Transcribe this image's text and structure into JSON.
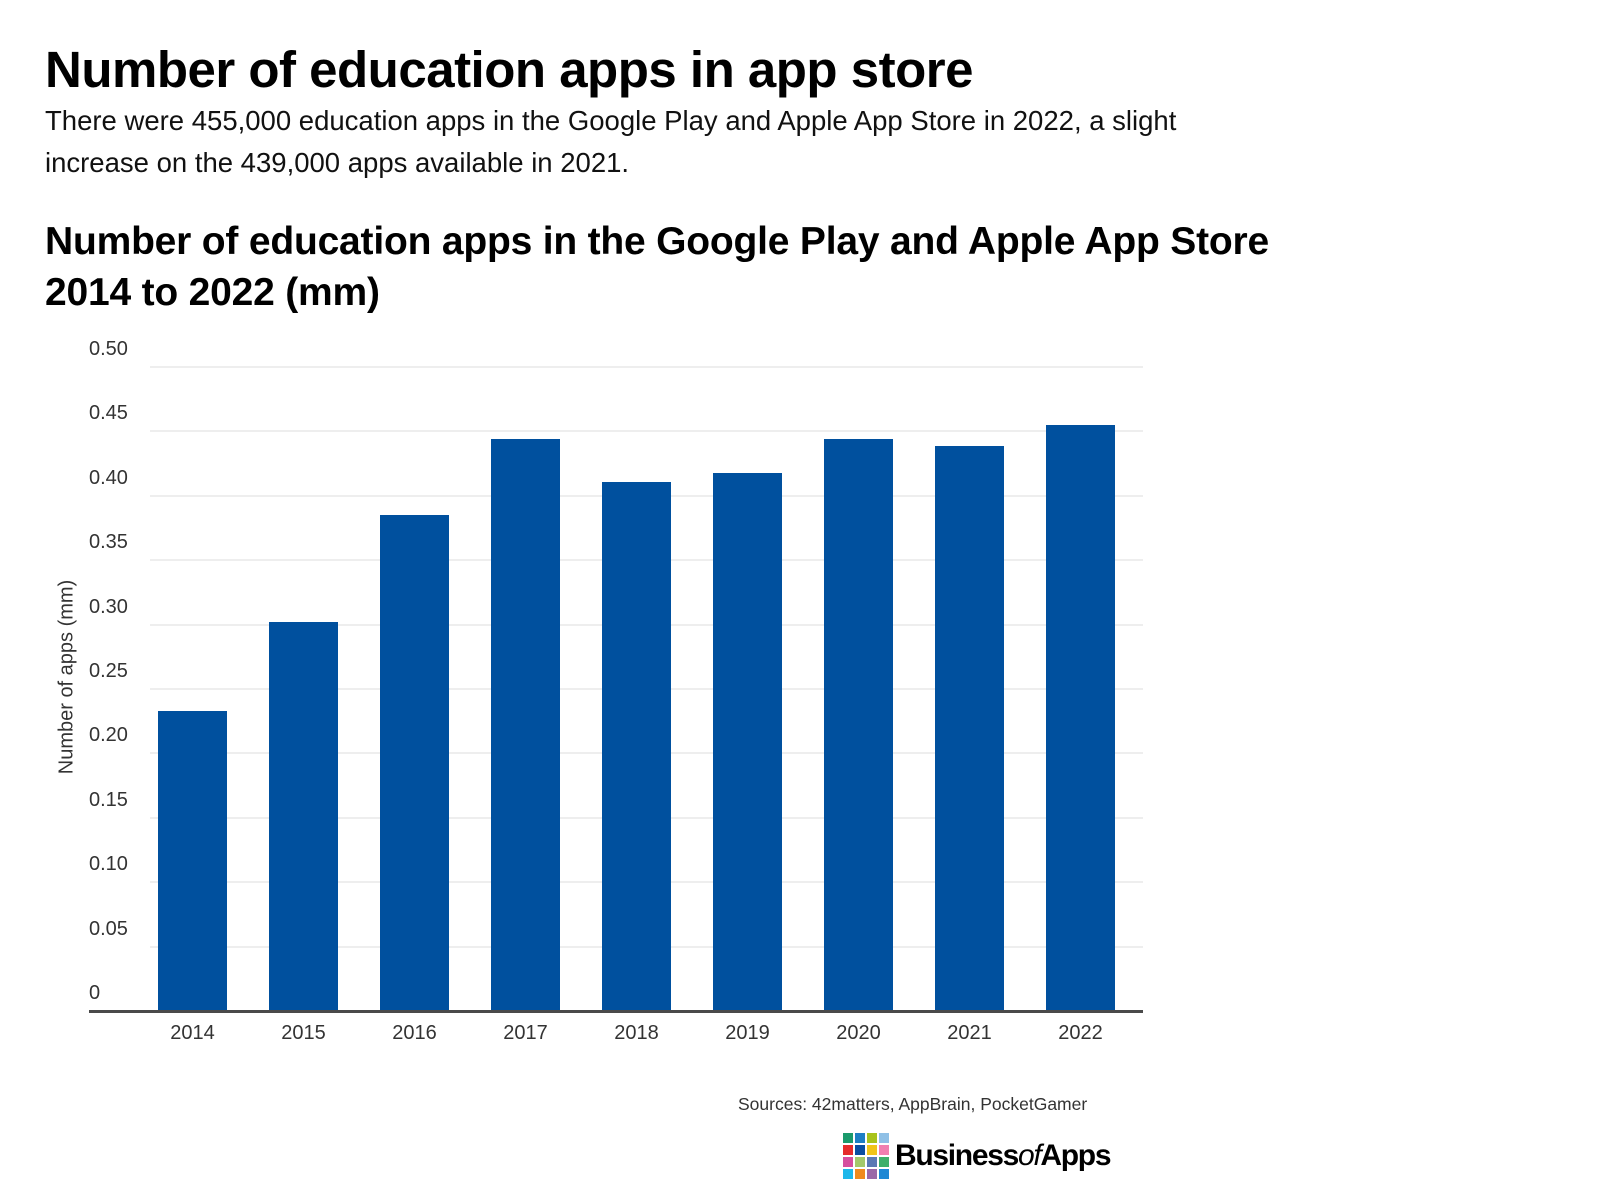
{
  "page": {
    "title": "Number of education apps in app store",
    "intro": "There were 455,000 education apps in the Google Play and Apple App Store in 2022, a slight increase on the 439,000 apps available in 2021."
  },
  "chart_data": {
    "type": "bar",
    "title": "Number of education apps in the Google Play and Apple App Store 2014 to 2022 (mm)",
    "xlabel": "",
    "ylabel": "Number of apps (mm)",
    "ylim": [
      0,
      0.5
    ],
    "yticks": [
      "0",
      "0.05",
      "0.10",
      "0.15",
      "0.20",
      "0.25",
      "0.30",
      "0.35",
      "0.40",
      "0.45",
      "0.50"
    ],
    "grid": true,
    "legend": null,
    "bar_color": "#00509e",
    "categories": [
      "2014",
      "2015",
      "2016",
      "2017",
      "2018",
      "2019",
      "2020",
      "2021",
      "2022"
    ],
    "values": [
      0.233,
      0.302,
      0.385,
      0.444,
      0.411,
      0.418,
      0.444,
      0.439,
      0.455
    ]
  },
  "footer": {
    "source": "Sources: 42matters, AppBrain, PocketGamer",
    "logo": {
      "brand_left": "Business",
      "brand_mid": "of",
      "brand_right": "Apps",
      "grid_colors": [
        "#1a9a6c",
        "#1e7fc4",
        "#a8c31c",
        "#8fc0e6",
        "#e52b2b",
        "#0a4ea1",
        "#f0c419",
        "#f07fb0",
        "#d64f9f",
        "#a4c96a",
        "#5a79b4",
        "#3daf6a",
        "#1db7ea",
        "#f08a1c",
        "#9a68a8",
        "#1e88d4"
      ]
    }
  }
}
